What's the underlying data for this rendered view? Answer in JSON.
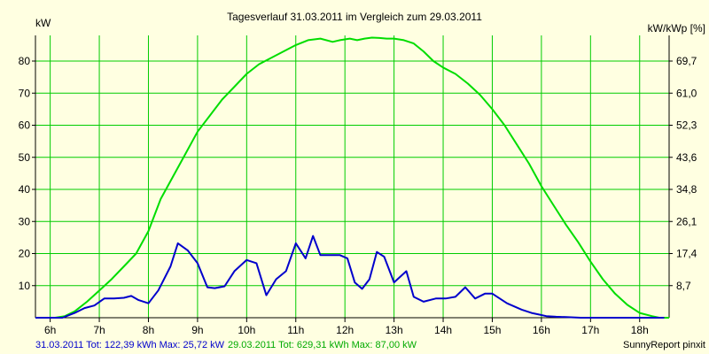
{
  "chart_data": {
    "type": "line",
    "title": "Tagesverlauf 31.03.2011 im Vergleich zum 29.03.2011",
    "ylabel_left": "kW",
    "ylabel_right": "kW/kWp [%]",
    "xlim": [
      5.7,
      18.6
    ],
    "ylim": [
      0,
      88
    ],
    "x_ticks": [
      {
        "x": 6,
        "label": "6h"
      },
      {
        "x": 7,
        "label": "7h"
      },
      {
        "x": 8,
        "label": "8h"
      },
      {
        "x": 9,
        "label": "9h"
      },
      {
        "x": 10,
        "label": "10h"
      },
      {
        "x": 11,
        "label": "11h"
      },
      {
        "x": 12,
        "label": "12h"
      },
      {
        "x": 13,
        "label": "13h"
      },
      {
        "x": 14,
        "label": "14h"
      },
      {
        "x": 15,
        "label": "15h"
      },
      {
        "x": 16,
        "label": "16h"
      },
      {
        "x": 17,
        "label": "17h"
      },
      {
        "x": 18,
        "label": "18h"
      }
    ],
    "y_ticks_left": [
      {
        "y": 10,
        "label": "10"
      },
      {
        "y": 20,
        "label": "20"
      },
      {
        "y": 30,
        "label": "30"
      },
      {
        "y": 40,
        "label": "40"
      },
      {
        "y": 50,
        "label": "50"
      },
      {
        "y": 60,
        "label": "60"
      },
      {
        "y": 70,
        "label": "70"
      },
      {
        "y": 80,
        "label": "80"
      }
    ],
    "y_ticks_right": [
      {
        "y": 10,
        "label": "8,7"
      },
      {
        "y": 20,
        "label": "17,4"
      },
      {
        "y": 30,
        "label": "26,1"
      },
      {
        "y": 40,
        "label": "34,8"
      },
      {
        "y": 50,
        "label": "43,6"
      },
      {
        "y": 60,
        "label": "52,3"
      },
      {
        "y": 70,
        "label": "61,0"
      },
      {
        "y": 80,
        "label": "69,7"
      }
    ],
    "grid": true,
    "series": [
      {
        "name": "31.03.2011",
        "color": "#0000cc",
        "x": [
          5.7,
          6.25,
          6.5,
          6.7,
          6.9,
          7.1,
          7.3,
          7.5,
          7.65,
          7.8,
          8.0,
          8.2,
          8.45,
          8.6,
          8.8,
          9.0,
          9.2,
          9.35,
          9.55,
          9.75,
          10.0,
          10.2,
          10.4,
          10.6,
          10.8,
          11.0,
          11.2,
          11.35,
          11.5,
          11.75,
          11.9,
          12.05,
          12.2,
          12.35,
          12.5,
          12.65,
          12.8,
          13.0,
          13.25,
          13.4,
          13.6,
          13.85,
          14.05,
          14.25,
          14.45,
          14.65,
          14.85,
          15.0,
          15.3,
          15.45,
          15.6,
          15.8,
          15.95,
          16.1,
          16.3,
          16.5,
          16.8,
          17.0,
          17.3,
          17.6,
          18.0,
          18.5
        ],
        "values": [
          0,
          0,
          1.5,
          3,
          3.8,
          6,
          6,
          6.2,
          6.8,
          5.5,
          4.5,
          8.5,
          16,
          23.2,
          21,
          17,
          9.5,
          9.2,
          9.8,
          14.5,
          18,
          17,
          7,
          12,
          14.5,
          23.2,
          18.5,
          25.5,
          19.5,
          19.5,
          19.5,
          18.5,
          11,
          9,
          12,
          20.5,
          19,
          11,
          14.5,
          6.5,
          5,
          6,
          6,
          6.5,
          9.5,
          6,
          7.5,
          7.5,
          4.5,
          3.5,
          2.5,
          1.5,
          1,
          0.5,
          0.3,
          0.2,
          0,
          0,
          0,
          0,
          0,
          0
        ]
      },
      {
        "name": "29.03.2011",
        "color": "#00dd00",
        "x": [
          5.7,
          6.1,
          6.3,
          6.5,
          6.75,
          7.0,
          7.25,
          7.5,
          7.75,
          8.0,
          8.25,
          8.5,
          8.75,
          9.0,
          9.25,
          9.5,
          9.75,
          10.0,
          10.25,
          10.5,
          10.75,
          11.0,
          11.25,
          11.5,
          11.75,
          11.9,
          12.1,
          12.25,
          12.4,
          12.55,
          12.7,
          12.85,
          13.0,
          13.2,
          13.4,
          13.6,
          13.8,
          14.0,
          14.25,
          14.5,
          14.75,
          15.0,
          15.25,
          15.5,
          15.75,
          16.0,
          16.25,
          16.5,
          16.75,
          17.0,
          17.25,
          17.5,
          17.75,
          18.0,
          18.25,
          18.4,
          18.6
        ],
        "values": [
          0,
          0,
          0.5,
          2,
          5,
          8.5,
          12,
          16,
          20,
          27,
          37,
          44,
          51,
          58,
          63,
          68,
          72,
          76,
          79,
          81,
          83,
          85,
          86.5,
          87,
          86,
          86.5,
          87,
          86.5,
          87,
          87.3,
          87.2,
          87,
          87,
          86.5,
          85.5,
          83,
          80,
          78,
          76,
          73,
          69.5,
          65,
          60,
          54,
          48,
          41,
          35,
          29,
          23.5,
          17.5,
          12,
          7.5,
          4,
          1.5,
          0.5,
          0,
          0
        ]
      }
    ],
    "footer": {
      "series1_summary": "31.03.2011 Tot: 122,39 kWh Max: 25,72 kW",
      "series2_summary": "29.03.2011 Tot: 629,31 kWh Max: 87,00 kW",
      "credit": "SunnyReport pinxit"
    },
    "colors": {
      "background": "#ffffe1",
      "grid": "#00cc00",
      "axis": "#000000",
      "series1_text": "#0000cc",
      "series2_text": "#00aa00"
    }
  }
}
